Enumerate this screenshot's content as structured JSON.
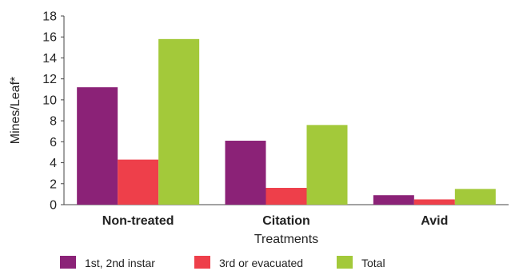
{
  "chart_data": {
    "type": "bar",
    "title": "",
    "xlabel": "Treatments",
    "ylabel": "Mines/Leaf*",
    "ylim": [
      0,
      18
    ],
    "yticks": [
      0,
      2,
      4,
      6,
      8,
      10,
      12,
      14,
      16,
      18
    ],
    "grid": false,
    "legend_position": "bottom",
    "categories": [
      "Non-treated",
      "Citation",
      "Avid"
    ],
    "series": [
      {
        "name": "1st, 2nd instar",
        "color": "#8B2277",
        "values": [
          11.2,
          6.1,
          0.9
        ]
      },
      {
        "name": "3rd or evacuated",
        "color": "#EE3F4A",
        "values": [
          4.3,
          1.6,
          0.5
        ]
      },
      {
        "name": "Total",
        "color": "#A3C93A",
        "values": [
          15.8,
          7.6,
          1.5
        ]
      }
    ]
  }
}
